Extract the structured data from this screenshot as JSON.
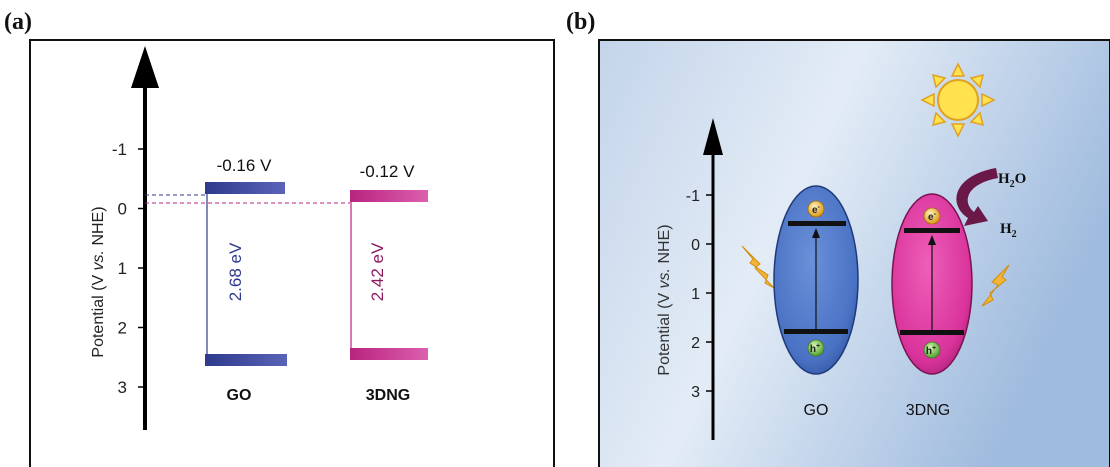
{
  "panel_a": {
    "label": "(a)",
    "ylabel_pre": "Potential (V ",
    "ylabel_vs": "vs.",
    "ylabel_post": " NHE)",
    "ticks": [
      "-1",
      "0",
      "1",
      "2",
      "3"
    ],
    "materials": [
      {
        "name": "GO",
        "cb_label": "-0.16 V",
        "gap_label": "2.68 eV",
        "cb": -0.16,
        "vb": 2.52,
        "gap": 2.68,
        "color": "#2e3a8c",
        "bar_light": "#5a63b8"
      },
      {
        "name": "3DNG",
        "cb_label": "-0.12 V",
        "gap_label": "2.42 eV",
        "cb": -0.12,
        "vb": 2.3,
        "gap": 2.42,
        "color": "#b8247f",
        "bar_light": "#dc5fae"
      }
    ]
  },
  "panel_b": {
    "label": "(b)",
    "ylabel_pre": "Potential (V ",
    "ylabel_vs": "vs.",
    "ylabel_post": " NHE)",
    "ticks": [
      "-1",
      "0",
      "1",
      "2",
      "3"
    ],
    "go_label": "GO",
    "dng_label": "3DNG",
    "electron": "e",
    "electron_sup": "-",
    "hole": "h",
    "hole_sup": "+",
    "reactant_h": "H",
    "reactant_sub": "2",
    "reactant_o": "O",
    "product_h": "H",
    "product_sub": "2",
    "colors": {
      "go": "#4a72c4",
      "dng": "#d9339b",
      "sun": "#ffe24d",
      "bolt": "#f2b535",
      "arrow": "#6a1848"
    }
  }
}
